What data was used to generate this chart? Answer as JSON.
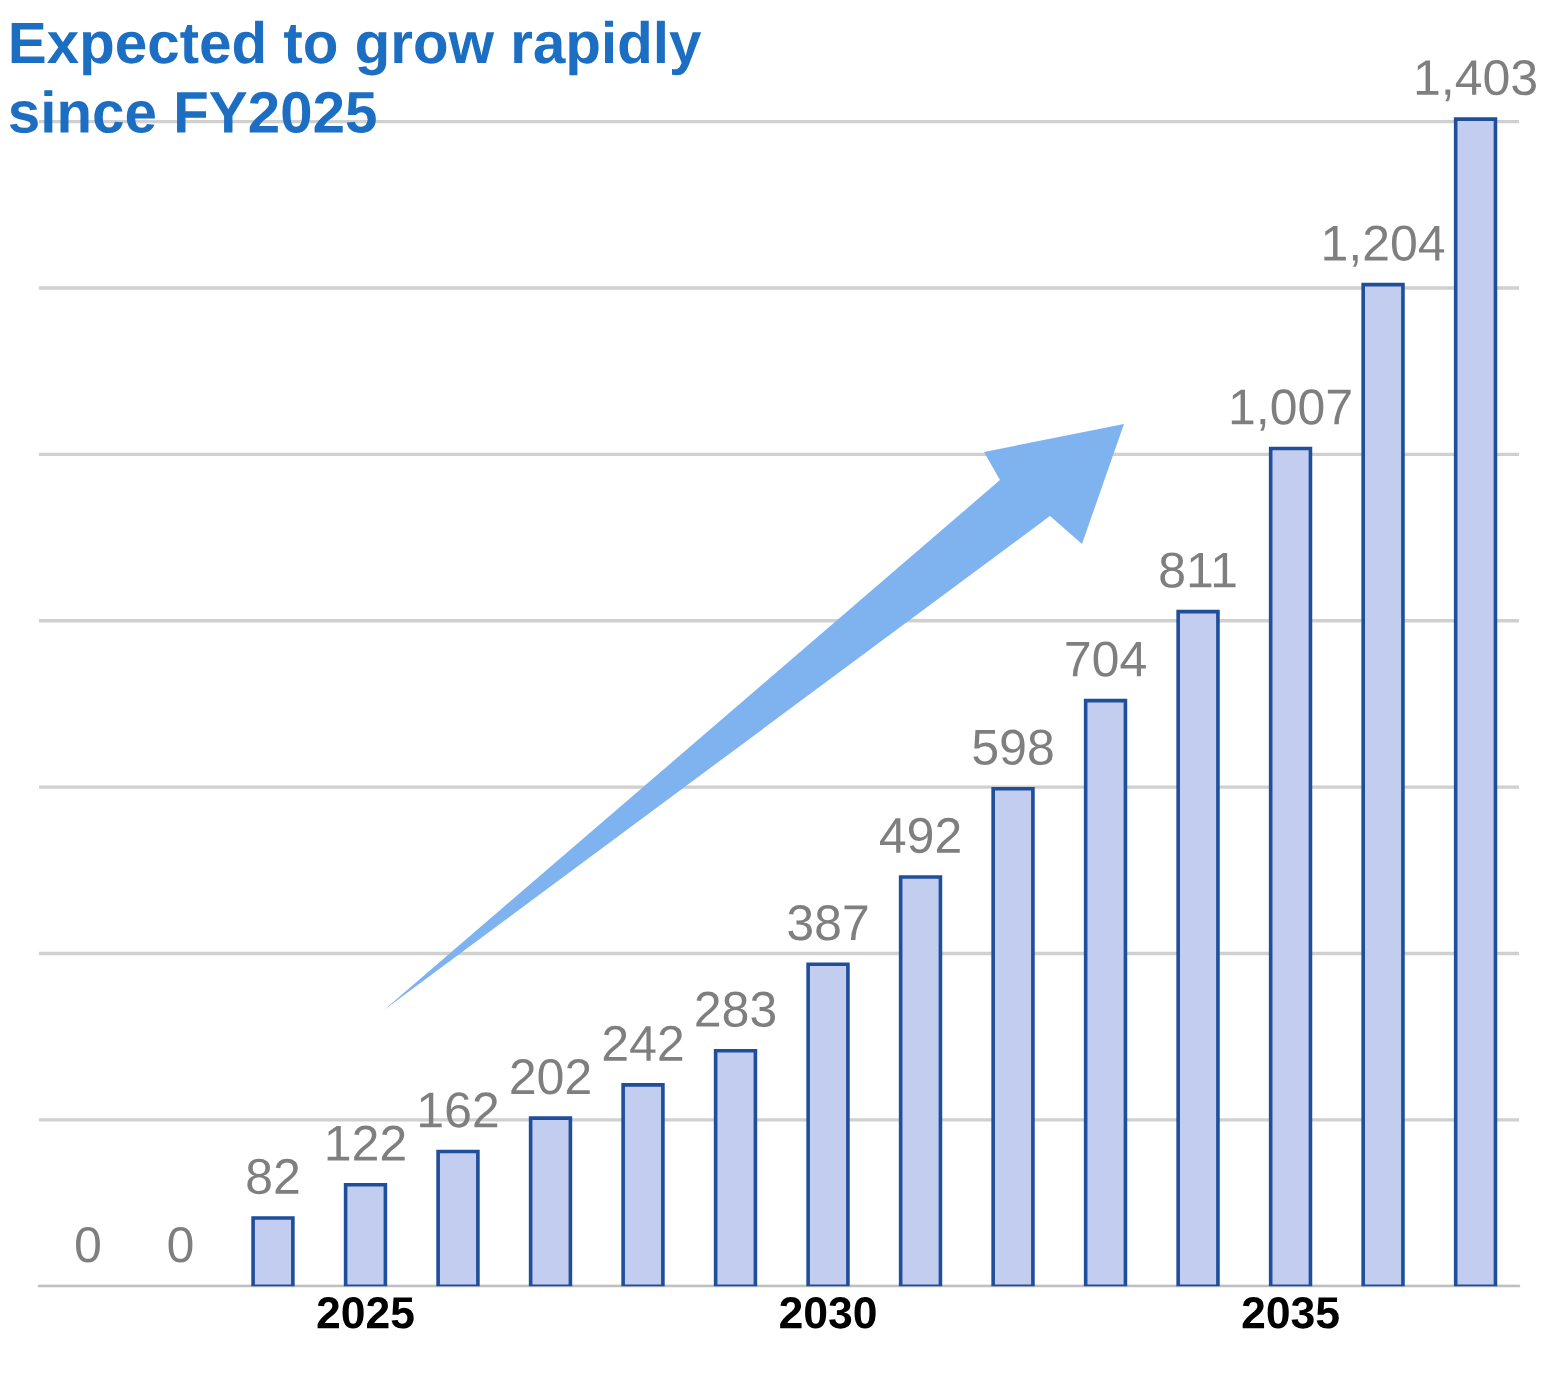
{
  "chart_data": {
    "type": "bar",
    "title": "Expected to grow rapidly\nsince FY2025",
    "categories": [
      null,
      null,
      null,
      "2025",
      null,
      null,
      null,
      null,
      "2030",
      null,
      null,
      null,
      null,
      "2035",
      null,
      null
    ],
    "values": [
      0,
      0,
      82,
      122,
      162,
      202,
      242,
      283,
      387,
      492,
      598,
      704,
      811,
      1007,
      1204,
      1403
    ],
    "value_labels": [
      "0",
      "0",
      "82",
      "122",
      "162",
      "202",
      "242",
      "283",
      "387",
      "492",
      "598",
      "704",
      "811",
      "1,007",
      "1,204",
      "1,403"
    ],
    "color": "#c3cdf0",
    "yticks": [
      {
        "value": 0,
        "label": null
      },
      {
        "value": 200,
        "label": null
      },
      {
        "value": 400,
        "label": null
      },
      {
        "value": 600,
        "label": null
      },
      {
        "value": 800,
        "label": null
      },
      {
        "value": 1000,
        "label": null
      },
      {
        "value": 1200,
        "label": null
      },
      {
        "value": 1400,
        "label": null
      }
    ],
    "tick_labels": "x",
    "grid": "y"
  }
}
